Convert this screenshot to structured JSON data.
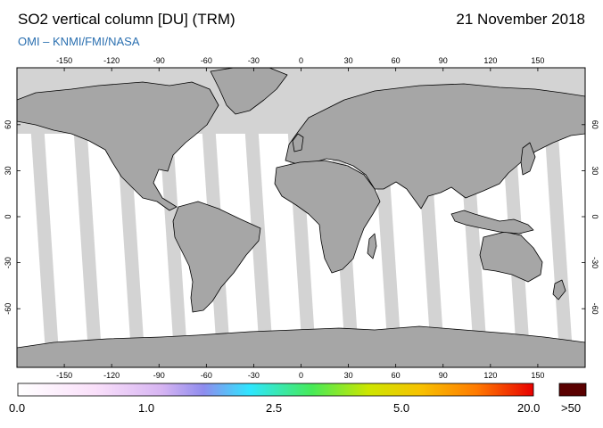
{
  "header": {
    "title": "SO2 vertical column [DU] (TRM)",
    "date": "21 November 2018",
    "subtitle": "OMI  –  KNMI/FMI/NASA"
  },
  "map": {
    "lon_ticks": [
      "-150",
      "-120",
      "-90",
      "-60",
      "-30",
      "0",
      "30",
      "60",
      "90",
      "120",
      "150"
    ],
    "lat_ticks": [
      "60",
      "30",
      "0",
      "-30",
      "-60"
    ],
    "colors": {
      "land": "#a6a6a6",
      "no_data": "#d3d3d3",
      "ocean_measured": "#ffffff",
      "coastline": "#000000"
    }
  },
  "colorbar": {
    "labels": [
      "0.0",
      "1.0",
      "2.5",
      "5.0",
      "20.0"
    ],
    "overflow_label": ">50",
    "overflow_color": "#5a0000",
    "stops": [
      "#ffffff",
      "#f8d8f8",
      "#c8a8f0",
      "#7f88ee",
      "#29e4ff",
      "#44e85a",
      "#c8e600",
      "#f6c500",
      "#ff7a00",
      "#ee0000"
    ]
  }
}
